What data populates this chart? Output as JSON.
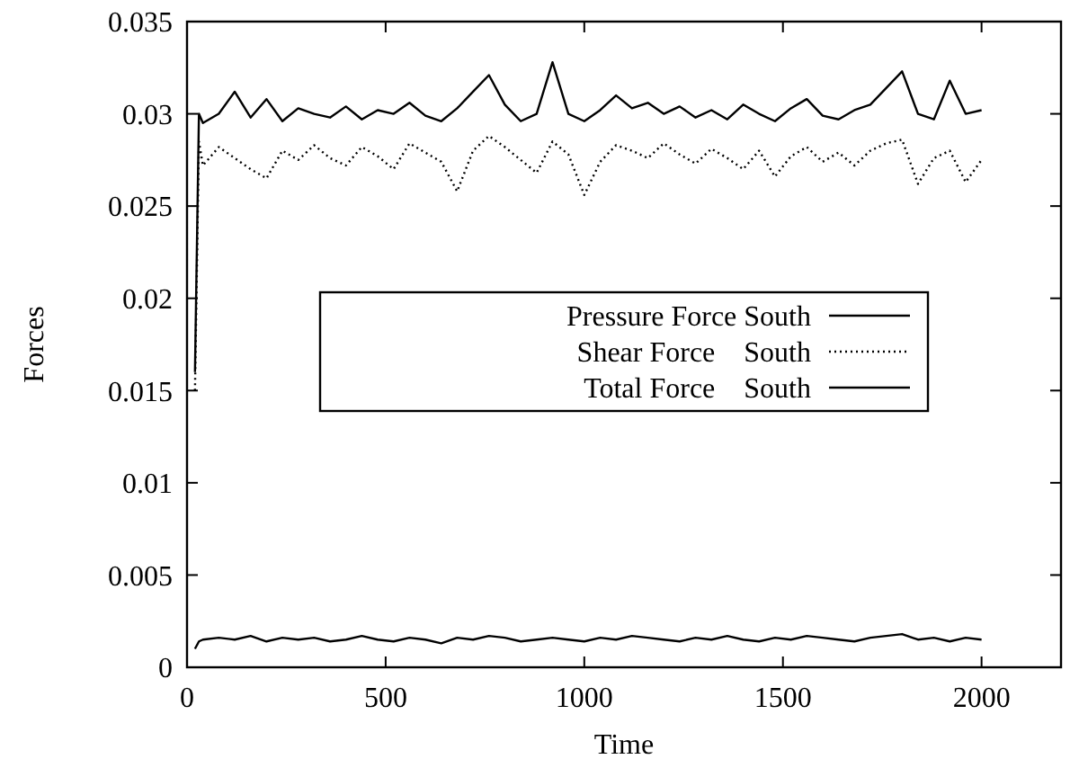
{
  "chart_data": {
    "type": "line",
    "xlabel": "Time",
    "ylabel": "Forces",
    "xlim": [
      0,
      2200
    ],
    "xticks": [
      0,
      500,
      1000,
      1500,
      2000
    ],
    "ylim": [
      0,
      0.035
    ],
    "yticks": [
      0,
      0.005,
      0.01,
      0.015,
      0.02,
      0.025,
      0.03,
      0.035
    ],
    "grid": false,
    "legend": "center",
    "marker": "none",
    "x": [
      20,
      30,
      40,
      80,
      120,
      160,
      200,
      240,
      280,
      320,
      360,
      400,
      440,
      480,
      520,
      560,
      600,
      640,
      680,
      720,
      760,
      800,
      840,
      880,
      920,
      960,
      1000,
      1040,
      1080,
      1120,
      1160,
      1200,
      1240,
      1280,
      1320,
      1360,
      1400,
      1440,
      1480,
      1520,
      1560,
      1600,
      1640,
      1680,
      1720,
      1760,
      1800,
      1840,
      1880,
      1920,
      1960,
      2000
    ],
    "series": [
      {
        "name": "Pressure Force South",
        "color": "#000000",
        "line_style": "solid",
        "values": [
          0.001,
          0.0014,
          0.0015,
          0.0016,
          0.0015,
          0.0017,
          0.0014,
          0.0016,
          0.0015,
          0.0016,
          0.0014,
          0.0015,
          0.0017,
          0.0015,
          0.0014,
          0.0016,
          0.0015,
          0.0013,
          0.0016,
          0.0015,
          0.0017,
          0.0016,
          0.0014,
          0.0015,
          0.0016,
          0.0015,
          0.0014,
          0.0016,
          0.0015,
          0.0017,
          0.0016,
          0.0015,
          0.0014,
          0.0016,
          0.0015,
          0.0017,
          0.0015,
          0.0014,
          0.0016,
          0.0015,
          0.0017,
          0.0016,
          0.0015,
          0.0014,
          0.0016,
          0.0017,
          0.0018,
          0.0015,
          0.0016,
          0.0014,
          0.0016,
          0.0015
        ]
      },
      {
        "name": "Shear Force    South",
        "color": "#000000",
        "line_style": "dotted",
        "values": [
          0.015,
          0.0285,
          0.0272,
          0.0282,
          0.0276,
          0.027,
          0.0265,
          0.028,
          0.0275,
          0.0283,
          0.0276,
          0.0272,
          0.0282,
          0.0277,
          0.027,
          0.0284,
          0.0279,
          0.0274,
          0.0258,
          0.028,
          0.0288,
          0.0282,
          0.0275,
          0.0268,
          0.0285,
          0.0278,
          0.0256,
          0.0274,
          0.0283,
          0.028,
          0.0276,
          0.0284,
          0.0278,
          0.0273,
          0.0281,
          0.0276,
          0.027,
          0.028,
          0.0266,
          0.0277,
          0.0282,
          0.0274,
          0.0279,
          0.0272,
          0.028,
          0.0284,
          0.0286,
          0.0262,
          0.0276,
          0.028,
          0.0263,
          0.0275
        ]
      },
      {
        "name": "Total Force    South",
        "color": "#000000",
        "line_style": "solid",
        "values": [
          0.016,
          0.03,
          0.0295,
          0.03,
          0.0312,
          0.0298,
          0.0308,
          0.0296,
          0.0303,
          0.03,
          0.0298,
          0.0304,
          0.0297,
          0.0302,
          0.03,
          0.0306,
          0.0299,
          0.0296,
          0.0303,
          0.0312,
          0.0321,
          0.0305,
          0.0296,
          0.03,
          0.0328,
          0.03,
          0.0296,
          0.0302,
          0.031,
          0.0303,
          0.0306,
          0.03,
          0.0304,
          0.0298,
          0.0302,
          0.0297,
          0.0305,
          0.03,
          0.0296,
          0.0303,
          0.0308,
          0.0299,
          0.0297,
          0.0302,
          0.0305,
          0.0314,
          0.0323,
          0.03,
          0.0297,
          0.0318,
          0.03,
          0.0302
        ]
      }
    ]
  }
}
